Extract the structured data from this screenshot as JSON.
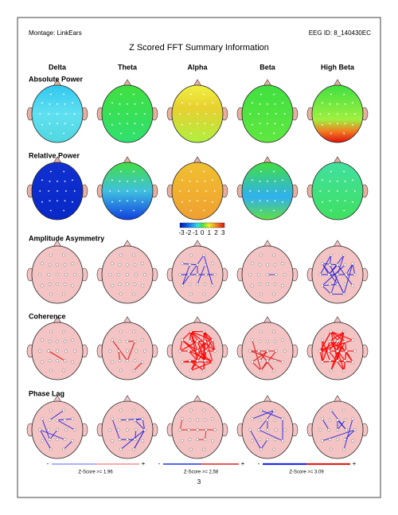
{
  "header": {
    "montage": "Montage:  LinkEars",
    "eeg_id": "EEG ID:  8_140430EC",
    "title": "Z Scored FFT Summary Information"
  },
  "columns": [
    "Delta",
    "Theta",
    "Alpha",
    "Beta",
    "High Beta"
  ],
  "rows": [
    "Absolute Power",
    "Relative Power",
    "Amplitude Asymmetry",
    "Coherence",
    "Phase Lag"
  ],
  "colorbar": {
    "ticks": [
      -3,
      -2,
      -1,
      0,
      1,
      2,
      3
    ]
  },
  "legend": [
    {
      "minus": "-",
      "plus": "+",
      "label": "Z-Score >= 1.96"
    },
    {
      "minus": "-",
      "plus": "+",
      "label": "Z-Score >= 2.58"
    },
    {
      "minus": "-",
      "plus": "+",
      "label": "Z-Score >= 3.09"
    }
  ],
  "page_number": "3"
}
